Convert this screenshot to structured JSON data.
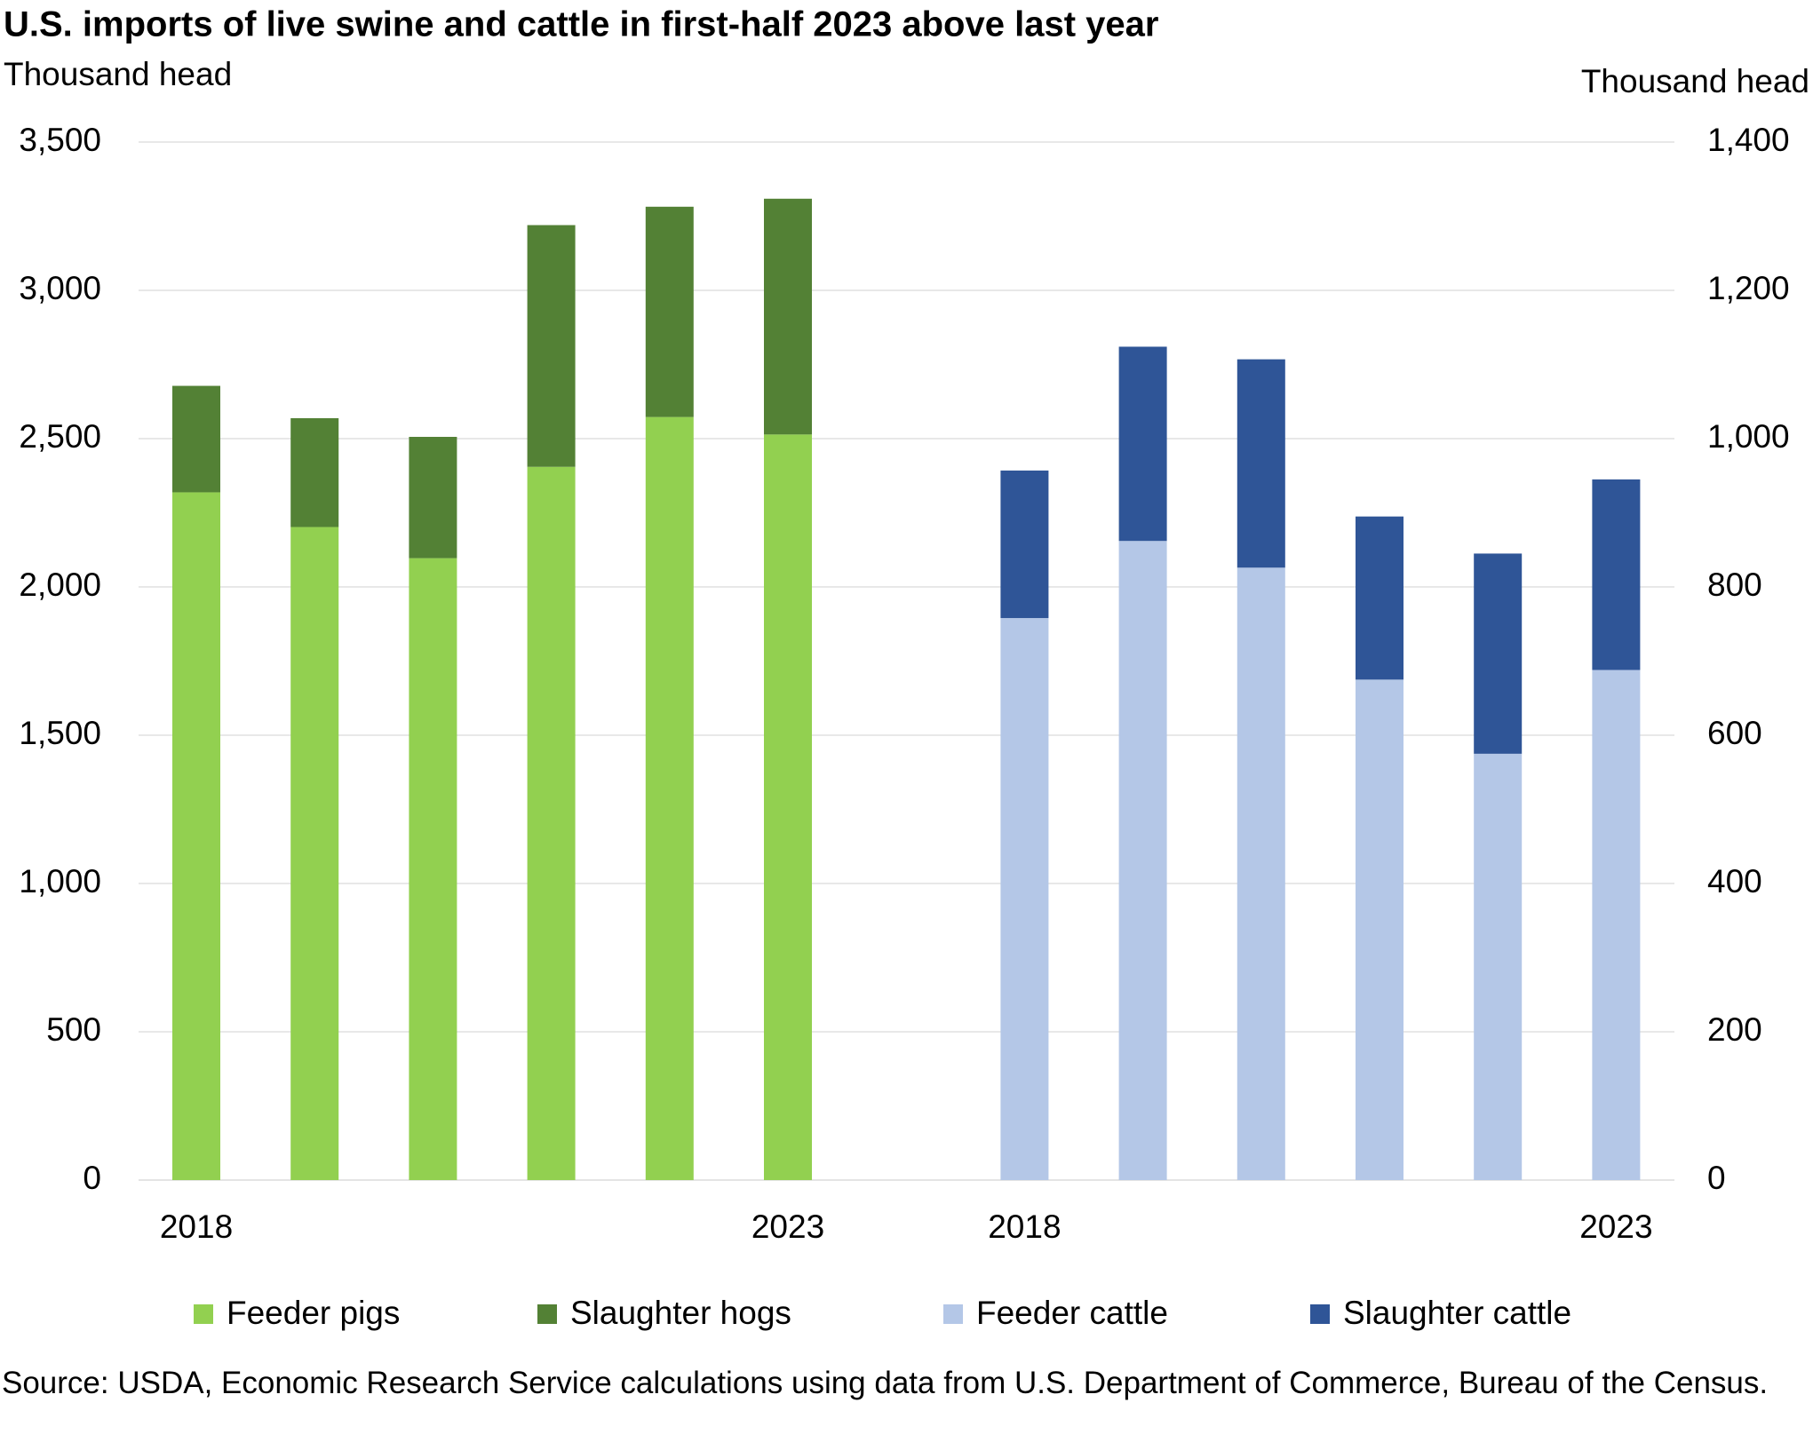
{
  "chart_data": {
    "type": "bar",
    "stacked": true,
    "title": "U.S. imports of live swine and cattle in first-half 2023 above last year",
    "y_label": "Thousand head",
    "y2_label": "Thousand head",
    "source": "Source: USDA, Economic Research Service calculations using data from U.S. Department of Commerce, Bureau of the Census.",
    "categories": [
      "2018",
      null,
      null,
      null,
      null,
      "2023",
      "2018",
      null,
      null,
      null,
      null,
      "2023"
    ],
    "series": [
      {
        "name": "Feeder pigs",
        "color": "#92d050",
        "axis": "y",
        "values": [
          2319,
          2202,
          2097,
          2405,
          2573,
          2514,
          null,
          null,
          null,
          null,
          null,
          null
        ]
      },
      {
        "name": "Slaughter hogs",
        "color": "#538135",
        "axis": "y",
        "values": [
          359,
          367,
          409,
          815,
          709,
          795,
          null,
          null,
          null,
          null,
          null,
          null
        ]
      },
      {
        "name": "Feeder cattle",
        "color": "#b4c7e7",
        "axis": "y2",
        "values": [
          null,
          null,
          null,
          null,
          null,
          null,
          758,
          862,
          826,
          675,
          575,
          688
        ]
      },
      {
        "name": "Slaughter cattle",
        "color": "#2f5597",
        "axis": "y2",
        "values": [
          null,
          null,
          null,
          null,
          null,
          null,
          199,
          262,
          281,
          220,
          270,
          257
        ]
      }
    ],
    "ylim": [
      0,
      3500
    ],
    "yticks": [
      0,
      500,
      {
        "value": 1000,
        "label": "1,000"
      },
      {
        "value": 1500,
        "label": "1,500"
      },
      {
        "value": 2000,
        "label": "2,000"
      },
      {
        "value": 2500,
        "label": "2,500"
      },
      {
        "value": 3000,
        "label": "3,000"
      },
      {
        "value": 3500,
        "label": "3,500"
      }
    ],
    "y2lim": [
      0,
      1400
    ],
    "y2ticks": [
      0,
      200,
      400,
      600,
      800,
      {
        "value": 1000,
        "label": "1,000"
      },
      {
        "value": 1200,
        "label": "1,200"
      },
      {
        "value": 1400,
        "label": "1,400"
      }
    ],
    "grid": true
  }
}
